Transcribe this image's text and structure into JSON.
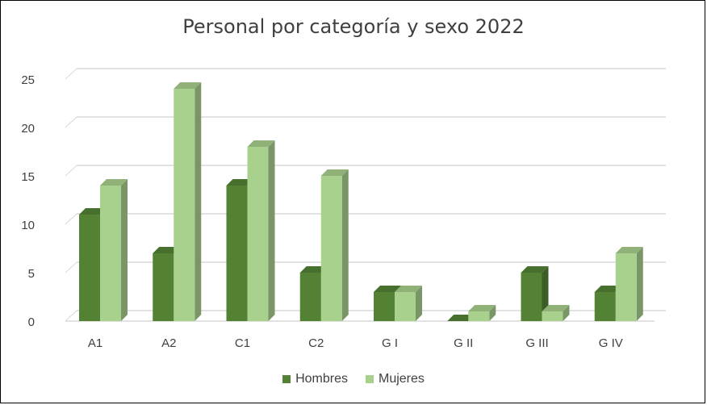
{
  "chart_data": {
    "type": "bar",
    "title": "Personal por categoría y sexo 2022",
    "categories": [
      "A1",
      "A2",
      "C1",
      "C2",
      "G I",
      "G II",
      "G III",
      "G IV"
    ],
    "series": [
      {
        "name": "Hombres",
        "values": [
          11,
          7,
          14,
          5,
          3,
          0,
          5,
          3
        ],
        "color": "#548235"
      },
      {
        "name": "Mujeres",
        "values": [
          14,
          24,
          18,
          15,
          3,
          1,
          1,
          7
        ],
        "color": "#a9d18e"
      }
    ],
    "ylim": [
      0,
      25
    ],
    "yticks": [
      0,
      5,
      10,
      15,
      20,
      25
    ],
    "grid": true,
    "legend_position": "bottom",
    "style": "3d-clustered-column"
  }
}
